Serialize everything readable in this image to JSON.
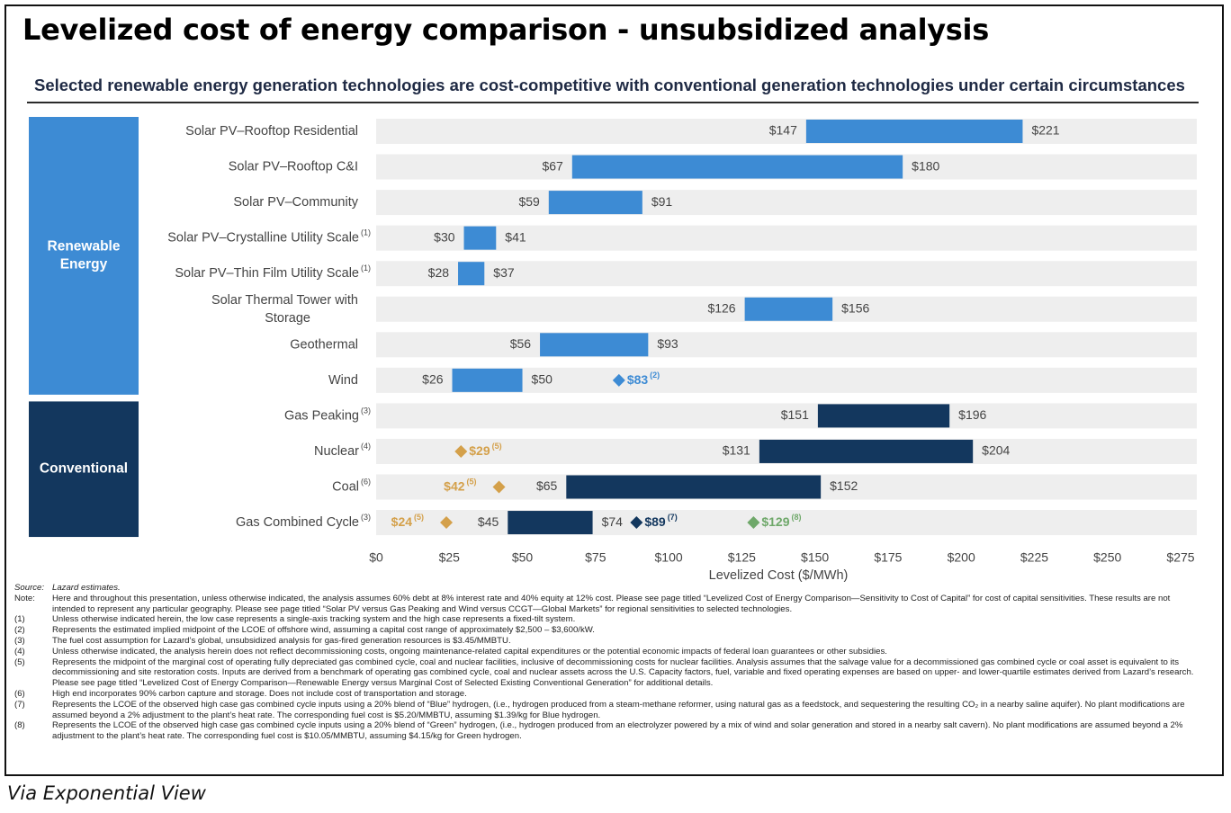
{
  "title": "Levelized cost of energy comparison - unsubsidized analysis",
  "subtitle": "Selected renewable energy generation technologies are cost-competitive with conventional generation technologies under certain circumstances",
  "caption": "Via Exponential View",
  "colors": {
    "renewable": "#3d8bd4",
    "conventional": "#13375e",
    "row_background": "#eeeeee",
    "marker_gold": "#d4a04a",
    "marker_navy": "#13375e",
    "marker_green": "#6fa86a",
    "marker_blue": "#3d8bd4"
  },
  "chart_data": {
    "type": "bar",
    "subtype": "floating-range",
    "xlabel": "Levelized Cost ($/MWh)",
    "ylabel": "",
    "xlim": [
      0,
      275
    ],
    "xticks": [
      "$0",
      "$25",
      "$50",
      "$75",
      "$100",
      "$125",
      "$150",
      "$175",
      "$200",
      "$225",
      "$250",
      "$275"
    ],
    "grid": false,
    "groups": [
      {
        "name": "Renewable\nEnergy",
        "first": 0,
        "last": 7,
        "color": "#3d8bd4"
      },
      {
        "name": "Conventional",
        "first": 8,
        "last": 11,
        "color": "#13375e"
      }
    ],
    "rows": [
      {
        "category": "Solar PV–Rooftop Residential",
        "sup": "",
        "low": 147,
        "high": 221,
        "low_label": "$147",
        "high_label": "$221",
        "group": "renewable",
        "markers": []
      },
      {
        "category": "Solar PV–Rooftop C&I",
        "sup": "",
        "low": 67,
        "high": 180,
        "low_label": "$67",
        "high_label": "$180",
        "group": "renewable",
        "markers": []
      },
      {
        "category": "Solar PV–Community",
        "sup": "",
        "low": 59,
        "high": 91,
        "low_label": "$59",
        "high_label": "$91",
        "group": "renewable",
        "markers": []
      },
      {
        "category": "Solar PV–Crystalline Utility Scale",
        "sup": "(1)",
        "low": 30,
        "high": 41,
        "low_label": "$30",
        "high_label": "$41",
        "group": "renewable",
        "markers": []
      },
      {
        "category": "Solar PV–Thin Film Utility Scale",
        "sup": "(1)",
        "low": 28,
        "high": 37,
        "low_label": "$28",
        "high_label": "$37",
        "group": "renewable",
        "markers": []
      },
      {
        "category": "Solar Thermal Tower with\nStorage",
        "sup": "",
        "low": 126,
        "high": 156,
        "low_label": "$126",
        "high_label": "$156",
        "group": "renewable",
        "markers": []
      },
      {
        "category": "Geothermal",
        "sup": "",
        "low": 56,
        "high": 93,
        "low_label": "$56",
        "high_label": "$93",
        "group": "renewable",
        "markers": []
      },
      {
        "category": "Wind",
        "sup": "",
        "low": 26,
        "high": 50,
        "low_label": "$26",
        "high_label": "$50",
        "group": "renewable",
        "markers": [
          {
            "value": 83,
            "label": "$83",
            "sup": "(2)",
            "color": "#3d8bd4",
            "side": "right"
          }
        ]
      },
      {
        "category": "Gas Peaking",
        "sup": "(3)",
        "low": 151,
        "high": 196,
        "low_label": "$151",
        "high_label": "$196",
        "group": "conventional",
        "markers": []
      },
      {
        "category": "Nuclear",
        "sup": "(4)",
        "low": 131,
        "high": 204,
        "low_label": "$131",
        "high_label": "$204",
        "group": "conventional",
        "markers": [
          {
            "value": 29,
            "label": "$29",
            "sup": "(5)",
            "color": "#d4a04a",
            "side": "right"
          }
        ]
      },
      {
        "category": "Coal",
        "sup": "(6)",
        "low": 65,
        "high": 152,
        "low_label": "$65",
        "high_label": "$152",
        "group": "conventional",
        "markers": [
          {
            "value": 42,
            "label": "$42",
            "sup": "(5)",
            "color": "#d4a04a",
            "side": "left"
          }
        ]
      },
      {
        "category": "Gas Combined Cycle",
        "sup": "(3)",
        "low": 45,
        "high": 74,
        "low_label": "$45",
        "high_label": "$74",
        "group": "conventional",
        "markers": [
          {
            "value": 24,
            "label": "$24",
            "sup": "(5)",
            "color": "#d4a04a",
            "side": "left"
          },
          {
            "value": 89,
            "label": "$89",
            "sup": "(7)",
            "color": "#13375e",
            "side": "right"
          },
          {
            "value": 129,
            "label": "$129",
            "sup": "(8)",
            "color": "#6fa86a",
            "side": "right"
          }
        ]
      }
    ]
  },
  "footnotes": [
    {
      "mark": "Source:",
      "text": "Lazard estimates.",
      "italic": true
    },
    {
      "mark": "Note:",
      "text": "Here and throughout this presentation, unless otherwise indicated, the analysis assumes 60% debt at 8% interest rate and 40% equity at 12% cost. Please see page titled “Levelized Cost of Energy Comparison—Sensitivity to Cost of Capital” for cost of capital sensitivities. These results are not intended to represent any particular geography. Please see page titled “Solar PV versus Gas Peaking and Wind versus CCGT—Global Markets” for regional sensitivities to selected technologies."
    },
    {
      "mark": "(1)",
      "text": "Unless otherwise indicated herein, the low case represents a single-axis tracking system and the high case represents a fixed-tilt system."
    },
    {
      "mark": "(2)",
      "text": "Represents the estimated implied midpoint of the LCOE of offshore wind, assuming a capital cost range of approximately $2,500 – $3,600/kW."
    },
    {
      "mark": "(3)",
      "text": "The fuel cost assumption for Lazard’s global, unsubsidized analysis for gas-fired generation resources is $3.45/MMBTU."
    },
    {
      "mark": "(4)",
      "text": "Unless otherwise indicated, the analysis herein does not reflect decommissioning costs, ongoing maintenance-related capital expenditures or the potential economic impacts of federal loan guarantees or other subsidies."
    },
    {
      "mark": "(5)",
      "text": "Represents the midpoint of the marginal cost of operating fully depreciated gas combined cycle, coal and nuclear facilities, inclusive of decommissioning costs for nuclear facilities. Analysis assumes that the salvage value for a decommissioned gas combined cycle or coal asset is equivalent to its decommissioning and site restoration costs. Inputs are derived from a benchmark of operating gas combined cycle, coal and nuclear assets across the U.S. Capacity factors, fuel, variable and fixed operating expenses are based on upper- and lower-quartile estimates derived from Lazard’s research. Please see page titled “Levelized Cost of Energy Comparison—Renewable Energy versus Marginal Cost of Selected Existing Conventional Generation” for additional details."
    },
    {
      "mark": "(6)",
      "text": "High end incorporates 90% carbon capture and storage. Does not include cost of transportation and storage."
    },
    {
      "mark": "(7)",
      "text": "Represents the LCOE of the observed high case gas combined cycle inputs using a 20% blend of “Blue” hydrogen, (i.e., hydrogen produced from a steam-methane reformer, using natural gas as a feedstock, and sequestering the resulting CO₂ in a nearby saline aquifer). No plant modifications are assumed beyond a 2% adjustment to the plant’s heat rate. The corresponding fuel cost is $5.20/MMBTU, assuming $1.39/kg for Blue hydrogen."
    },
    {
      "mark": "(8)",
      "text": "Represents the LCOE of the observed high case gas combined cycle inputs using a 20% blend of “Green” hydrogen, (i.e., hydrogen produced from an electrolyzer powered by a mix of wind and solar generation and stored in a nearby salt cavern). No plant modifications are assumed beyond a 2% adjustment to the plant’s heat rate. The corresponding fuel cost is $10.05/MMBTU, assuming $4.15/kg for Green hydrogen."
    }
  ]
}
